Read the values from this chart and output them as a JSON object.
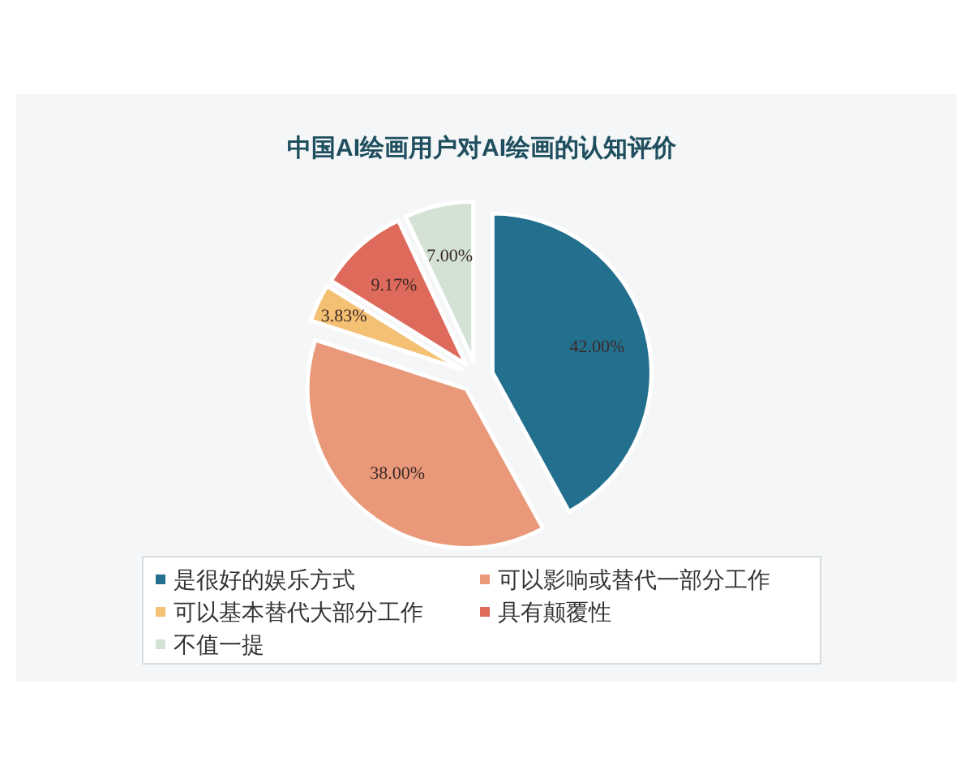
{
  "chart_data": {
    "type": "pie",
    "title": "中国AI绘画用户对AI绘画的认知评价",
    "categories": [
      "是很好的娱乐方式",
      "可以影响或替代一部分工作",
      "可以基本替代大部分工作",
      "具有颠覆性",
      "不值一提"
    ],
    "values": [
      42.0,
      38.0,
      3.83,
      9.17,
      7.0
    ],
    "colors": [
      "#236f8e",
      "#e9997a",
      "#f4c073",
      "#de6a5b",
      "#d3e2d4"
    ],
    "value_labels": [
      "42.00%",
      "38.00%",
      "3.83%",
      "9.17%",
      "7.00%"
    ],
    "legend": "bottom"
  }
}
